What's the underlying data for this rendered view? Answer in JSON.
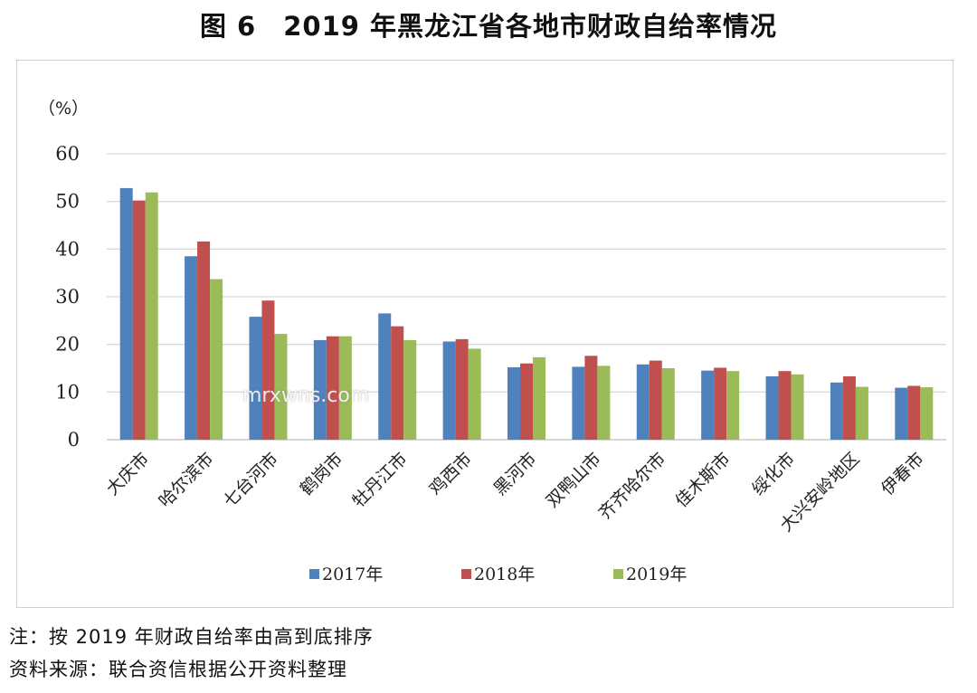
{
  "title": "图 6　2019 年黑龙江省各地市财政自给率情况",
  "notes": {
    "line1": "注：按 2019 年财政自给率由高到底排序",
    "line2": "资料来源：联合资信根据公开资料整理"
  },
  "watermark": "mrxwns.com",
  "chart_data": {
    "type": "bar",
    "unit_label": "（%）",
    "ylim": [
      0,
      60
    ],
    "yticks": [
      0,
      10,
      20,
      30,
      40,
      50,
      60
    ],
    "grid": true,
    "legend_position": "bottom",
    "categories": [
      "大庆市",
      "哈尔滨市",
      "七台河市",
      "鹤岗市",
      "牡丹江市",
      "鸡西市",
      "黑河市",
      "双鸭山市",
      "齐齐哈尔市",
      "佳木斯市",
      "绥化市",
      "大兴安岭地区",
      "伊春市"
    ],
    "series": [
      {
        "name": "2017年",
        "color": "#4f81bd",
        "values": [
          52.8,
          38.5,
          25.8,
          20.9,
          26.5,
          20.6,
          15.2,
          15.3,
          15.8,
          14.5,
          13.3,
          12.0,
          10.9
        ]
      },
      {
        "name": "2018年",
        "color": "#c0504d",
        "values": [
          50.2,
          41.6,
          29.2,
          21.7,
          23.8,
          21.1,
          16.0,
          17.6,
          16.6,
          15.1,
          14.4,
          13.3,
          11.3
        ]
      },
      {
        "name": "2019年",
        "color": "#9bbb59",
        "values": [
          51.9,
          33.7,
          22.2,
          21.7,
          20.9,
          19.1,
          17.3,
          15.5,
          15.0,
          14.4,
          13.7,
          11.1,
          11.0
        ]
      }
    ]
  }
}
